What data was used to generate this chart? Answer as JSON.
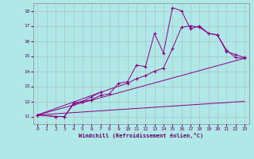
{
  "xlabel": "Windchill (Refroidissement éolien,°C)",
  "background_color": "#b0e8e8",
  "grid_color": "#aaaaaa",
  "line_color": "#880088",
  "ylim": [
    10.5,
    18.5
  ],
  "xlim": [
    -0.5,
    23.5
  ],
  "yticks": [
    11,
    12,
    13,
    14,
    15,
    16,
    17,
    18
  ],
  "xticks": [
    0,
    1,
    2,
    3,
    4,
    5,
    6,
    7,
    8,
    9,
    10,
    11,
    12,
    13,
    14,
    15,
    16,
    17,
    18,
    19,
    20,
    21,
    22,
    23
  ],
  "line1_x": [
    0,
    2,
    3,
    4,
    5,
    6,
    7,
    8,
    9,
    10,
    11,
    12,
    13,
    14,
    15,
    16,
    17,
    18,
    19,
    20,
    21,
    22,
    23
  ],
  "line1_y": [
    11.1,
    11.0,
    11.0,
    11.8,
    12.0,
    12.1,
    12.4,
    12.5,
    13.2,
    13.3,
    14.4,
    14.3,
    16.5,
    15.2,
    18.2,
    18.0,
    16.8,
    17.0,
    16.5,
    16.4,
    15.3,
    15.1,
    14.9
  ],
  "line2_x": [
    0,
    2,
    3,
    4,
    5,
    6,
    7
  ],
  "line2_y": [
    11.1,
    11.0,
    11.0,
    11.9,
    12.0,
    12.3,
    12.6
  ],
  "line3_x": [
    0,
    7,
    10,
    11,
    12,
    13,
    14,
    15,
    16,
    17,
    18,
    19,
    20,
    21,
    22,
    23
  ],
  "line3_y": [
    11.1,
    12.6,
    13.2,
    13.5,
    13.7,
    14.0,
    14.2,
    15.5,
    16.9,
    17.0,
    16.9,
    16.5,
    16.4,
    15.4,
    14.9,
    14.85
  ],
  "line4_x": [
    0,
    23
  ],
  "line4_y": [
    11.1,
    14.85
  ],
  "line5_x": [
    0,
    23
  ],
  "line5_y": [
    11.1,
    12.0
  ]
}
